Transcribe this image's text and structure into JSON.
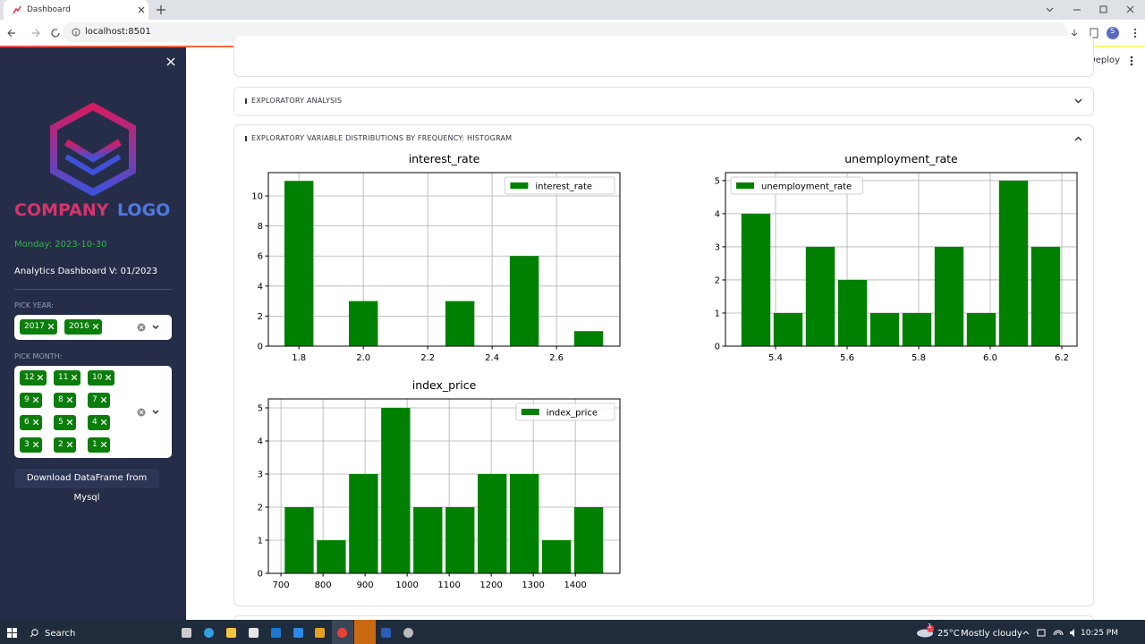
{
  "browser": {
    "tab_title": "Dashboard",
    "url": "localhost:8501",
    "profile": "S"
  },
  "app": {
    "deploy": "Deploy"
  },
  "sidebar": {
    "logo": [
      "COMPANY",
      "LOGO"
    ],
    "date": "Monday: 2023-10-30",
    "version": "Analytics Dashboard V: 01/2023",
    "year_label": "PICK YEAR:",
    "years": [
      "2017",
      "2016"
    ],
    "month_label": "PICK MONTH:",
    "months": [
      "12",
      "11",
      "10",
      "9",
      "8",
      "7",
      "6",
      "5",
      "4",
      "3",
      "2",
      "1"
    ],
    "download_button": "Download DataFrame from Mysql"
  },
  "expanders": [
    "EXPLORATORY ANALYSIS",
    "EXPLORATORY VARIABLE DISTRIBUTIONS BY FREQUENCY: HISTOGRAM"
  ],
  "taskbar": {
    "search": "Search",
    "weather_badge": "1",
    "temperature": "25°C",
    "weather": "Mostly cloudy",
    "time": "10:25 PM"
  },
  "chart_data": [
    {
      "type": "histogram",
      "title": "interest_rate",
      "bins": [
        1.75,
        1.85,
        1.95,
        2.05,
        2.15,
        2.25,
        2.35,
        2.45,
        2.55,
        2.65,
        2.75
      ],
      "series": [
        {
          "name": "interest_rate",
          "color": "#008000",
          "values": [
            11,
            0,
            3,
            0,
            0,
            3,
            0,
            6,
            0,
            1
          ]
        }
      ],
      "xlim": [
        1.705,
        2.797
      ],
      "xticks": [
        1.8,
        {
          "value": 2,
          "label": "2.0"
        },
        2.2,
        2.4,
        2.6
      ],
      "ylim": [
        0,
        11.55
      ],
      "yticks": [
        0,
        2,
        4,
        6,
        8,
        10
      ],
      "grid": true,
      "legend": "upper right"
    },
    {
      "type": "histogram",
      "title": "unemployment_rate",
      "bins": [
        5.3,
        5.39,
        5.48,
        5.57,
        5.66,
        5.75,
        5.84,
        5.93,
        6.02,
        6.11,
        6.2
      ],
      "series": [
        {
          "name": "unemployment_rate",
          "color": "#008000",
          "values": [
            4,
            1,
            3,
            2,
            1,
            1,
            3,
            1,
            5,
            3
          ]
        }
      ],
      "xlim": [
        5.26,
        6.2425
      ],
      "xticks": [
        5.4,
        5.6,
        5.8,
        {
          "value": 6,
          "label": "6.0"
        },
        6.2
      ],
      "ylim": [
        0,
        5.24
      ],
      "yticks": [
        0,
        1,
        2,
        3,
        4,
        5
      ],
      "grid": true,
      "legend": "upper left"
    },
    {
      "type": "histogram",
      "title": "index_price",
      "bins": [
        705,
        781.5,
        858,
        934.5,
        1011,
        1087.5,
        1164,
        1240.5,
        1317,
        1393.5,
        1470
      ],
      "series": [
        {
          "name": "index_price",
          "color": "#008000",
          "values": [
            2,
            1,
            3,
            5,
            2,
            2,
            3,
            3,
            1,
            2
          ]
        }
      ],
      "xlim": [
        670,
        1506
      ],
      "xticks": [
        700,
        800,
        900,
        1000,
        1100,
        1200,
        1300,
        1400
      ],
      "ylim": [
        0,
        5.27
      ],
      "yticks": [
        0,
        1,
        2,
        3,
        4,
        5
      ],
      "grid": true,
      "legend": "upper right"
    }
  ]
}
